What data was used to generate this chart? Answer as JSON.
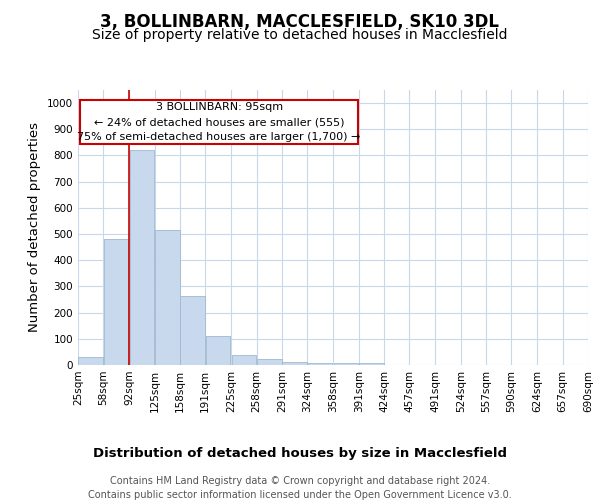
{
  "title": "3, BOLLINBARN, MACCLESFIELD, SK10 3DL",
  "subtitle": "Size of property relative to detached houses in Macclesfield",
  "xlabel": "Distribution of detached houses by size in Macclesfield",
  "ylabel": "Number of detached properties",
  "bins": [
    25,
    58,
    92,
    125,
    158,
    191,
    225,
    258,
    291,
    324,
    358,
    391,
    424,
    457,
    491,
    524,
    557,
    590,
    624,
    657,
    690
  ],
  "counts": [
    30,
    480,
    820,
    515,
    265,
    110,
    38,
    22,
    12,
    8,
    8,
    8,
    0,
    0,
    0,
    0,
    0,
    0,
    0,
    0
  ],
  "bar_color": "#c8d9ed",
  "bar_edge_color": "#a0b8d0",
  "marker_value": 92,
  "marker_color": "#cc0000",
  "ylim": [
    0,
    1050
  ],
  "annotation_text": "3 BOLLINBARN: 95sqm\n← 24% of detached houses are smaller (555)\n75% of semi-detached houses are larger (1,700) →",
  "annotation_box_color": "#cc0000",
  "footer_text": "Contains HM Land Registry data © Crown copyright and database right 2024.\nContains public sector information licensed under the Open Government Licence v3.0.",
  "bg_color": "#ffffff",
  "grid_color": "#c8d8ea",
  "title_fontsize": 12,
  "subtitle_fontsize": 10,
  "axis_label_fontsize": 9.5,
  "tick_fontsize": 7.5,
  "footer_fontsize": 7
}
